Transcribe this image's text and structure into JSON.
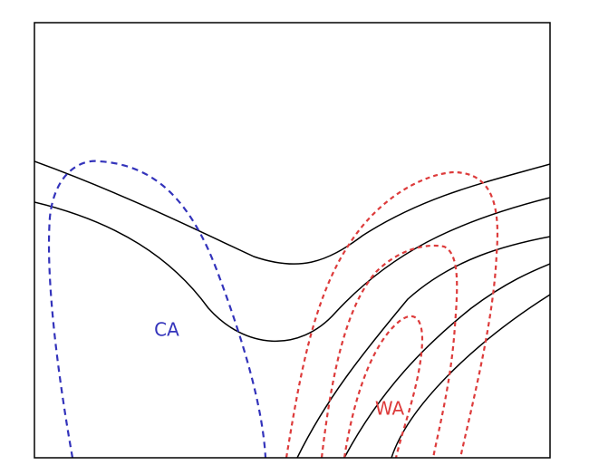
{
  "labels": {
    "cold": "CA",
    "warm": "WA"
  }
}
